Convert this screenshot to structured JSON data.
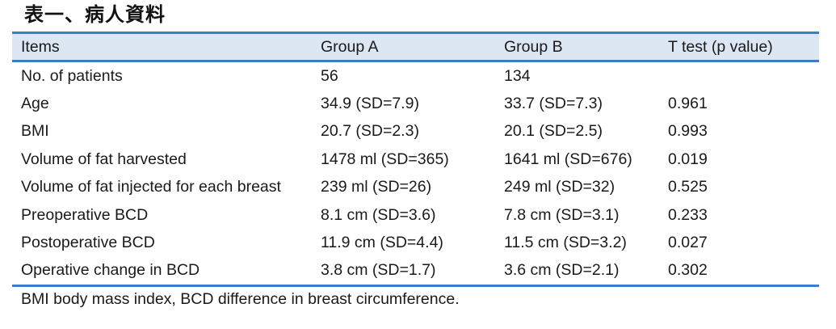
{
  "title": "表一、病人資料",
  "table": {
    "headers": [
      "Items",
      "Group A",
      "Group B",
      "T test (p value)"
    ],
    "rows": [
      [
        "No. of patients",
        "56",
        "134",
        ""
      ],
      [
        "Age",
        "34.9 (SD=7.9)",
        "33.7 (SD=7.3)",
        "0.961"
      ],
      [
        "BMI",
        "20.7 (SD=2.3)",
        "20.1 (SD=2.5)",
        "0.993"
      ],
      [
        "Volume of fat harvested",
        "1478 ml (SD=365)",
        "1641 ml (SD=676)",
        "0.019"
      ],
      [
        "Volume of fat injected for each breast",
        "239 ml (SD=26)",
        "249 ml (SD=32)",
        "0.525"
      ],
      [
        "Preoperative BCD",
        "8.1 cm (SD=3.6)",
        "7.8 cm (SD=3.1)",
        "0.233"
      ],
      [
        "Postoperative BCD",
        "11.9 cm (SD=4.4)",
        "11.5 cm (SD=3.2)",
        "0.027"
      ],
      [
        "Operative change in BCD",
        "3.8 cm (SD=1.7)",
        "3.6 cm (SD=2.1)",
        "0.302"
      ]
    ]
  },
  "footnote": "BMI body mass index, BCD difference in breast circumference.",
  "colors": {
    "rule": "#3b7dc8",
    "header_bg": "#dce7f3"
  }
}
